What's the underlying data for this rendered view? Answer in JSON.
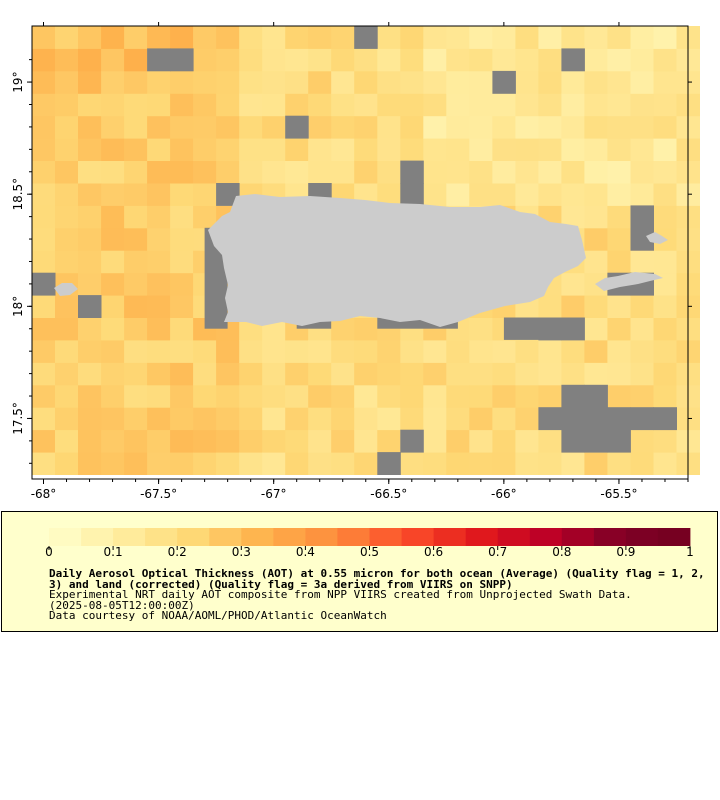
{
  "map": {
    "lon_range": [
      -68.05,
      -65.2
    ],
    "lat_range": [
      17.23,
      19.25
    ],
    "lon_ticks": [
      {
        "value": -68,
        "label": "-68°"
      },
      {
        "value": -67.5,
        "label": "-67.5°"
      },
      {
        "value": -67,
        "label": "-67°"
      },
      {
        "value": -66.5,
        "label": "-66.5°"
      },
      {
        "value": -66,
        "label": "-66°"
      },
      {
        "value": -65.5,
        "label": "-65.5°"
      }
    ],
    "lat_ticks": [
      {
        "value": 19,
        "label": "19°"
      },
      {
        "value": 18.5,
        "label": "18.5°"
      },
      {
        "value": 18,
        "label": "18°"
      },
      {
        "value": 17.5,
        "label": "17.5°"
      }
    ],
    "grid_cell_deg": 0.1,
    "colors": {
      "land": "#cccccc",
      "no_data": "#808080"
    },
    "aot_base_value": 0.2,
    "colormap": "YlOrRd"
  },
  "legend": {
    "range": [
      0,
      1
    ],
    "tick_labels": [
      "0",
      "0.1",
      "0.2",
      "0.3",
      "0.4",
      "0.5",
      "0.6",
      "0.7",
      "0.8",
      "0.9",
      "1"
    ],
    "color_stops": [
      "#ffffcc",
      "#ffeda0",
      "#fed976",
      "#feb24c",
      "#fd8d3c",
      "#fc4e2a",
      "#e31a1c",
      "#bd0026",
      "#800026",
      "#730020"
    ],
    "title": "Daily Aerosol Optical Thickness (AOT) at 0.55 micron for both ocean (Average) (Quality flag = 1, 2, 3) and land (corrected) (Quality flag = 3a derived from VIIRS on SNPP)",
    "line1": "Experimental NRT daily AOT composite from NPP VIIRS created from Unprojected Swath Data.",
    "line2": "(2025-08-05T12:00:00Z)",
    "line3": "Data courtesy of NOAA/AOML/PHOD/Atlantic OceanWatch",
    "background": "#ffffcc"
  }
}
